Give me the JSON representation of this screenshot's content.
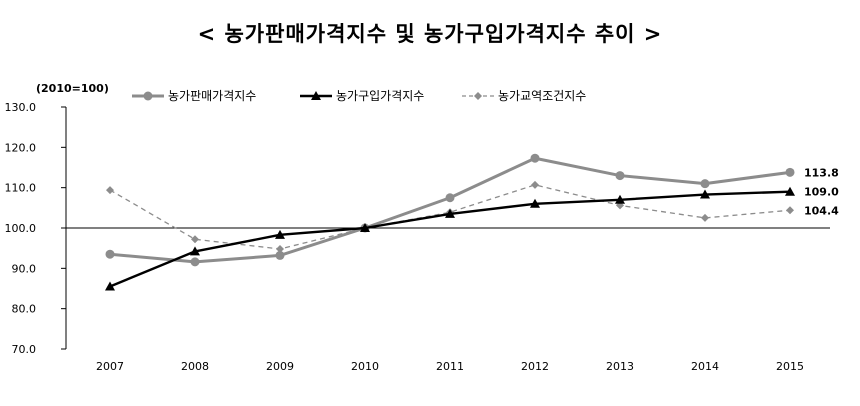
{
  "chart_data": {
    "type": "line",
    "title": "< 농가판매가격지수 및 농가구입가격지수 추이 >",
    "unit_label": "(2010=100)",
    "x": [
      "2007",
      "2008",
      "2009",
      "2010",
      "2011",
      "2012",
      "2013",
      "2014",
      "2015"
    ],
    "ylim": [
      70,
      130
    ],
    "yticks": [
      "70.0",
      "80.0",
      "90.0",
      "100.0",
      "110.0",
      "120.0",
      "130.0"
    ],
    "reference_line": 100,
    "grid": false,
    "legend_position": "top",
    "series": [
      {
        "name": "농가판매가격지수",
        "values": [
          93.5,
          91.6,
          93.2,
          100.0,
          107.5,
          117.3,
          113.0,
          111.0,
          113.8
        ],
        "color": "#8c8c8c",
        "marker": "circle",
        "style": "solid",
        "end_label": "113.8"
      },
      {
        "name": "농가구입가격지수",
        "values": [
          85.5,
          94.2,
          98.3,
          100.0,
          103.5,
          106.0,
          107.0,
          108.3,
          109.0
        ],
        "color": "#000000",
        "marker": "triangle",
        "style": "solid",
        "end_label": "109.0"
      },
      {
        "name": "농가교역조건지수",
        "values": [
          109.4,
          97.2,
          94.8,
          100.0,
          103.9,
          110.7,
          105.6,
          102.5,
          104.4
        ],
        "color": "#8c8c8c",
        "marker": "diamond",
        "style": "dashed",
        "end_label": "104.4"
      }
    ]
  }
}
